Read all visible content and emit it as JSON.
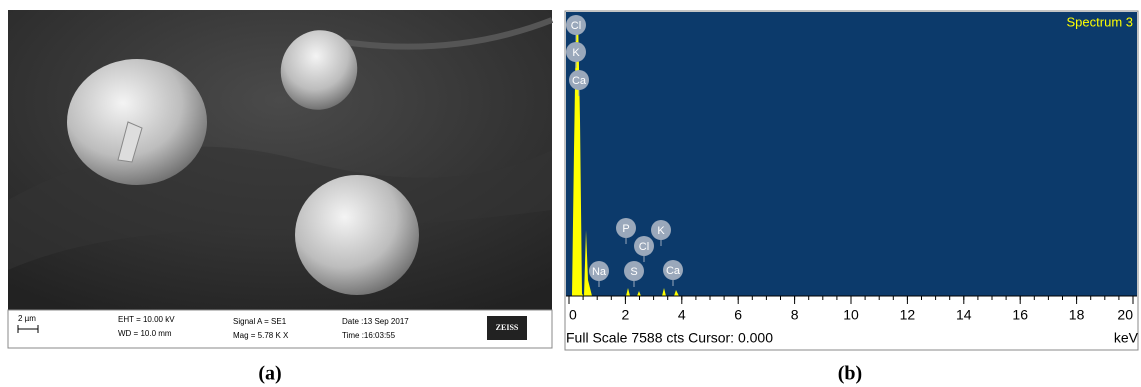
{
  "panel_a": {
    "label": "(a)",
    "scale_bar": "2 µm",
    "info": [
      [
        "EHT = 10.00 kV",
        "WD = 10.0 mm"
      ],
      [
        "Signal A = SE1",
        "Mag =  5.78 K X"
      ],
      [
        "Date :13 Sep 2017",
        "Time :16:03:55"
      ]
    ],
    "logo": "ZEISS"
  },
  "panel_b": {
    "label": "(b)",
    "title": "Spectrum 3",
    "xlim": [
      0,
      20
    ],
    "xticks": [
      0,
      2,
      4,
      6,
      8,
      10,
      12,
      14,
      16,
      18,
      20
    ],
    "x_unit": "keV",
    "status": "Full Scale 7588 cts Cursor: 0.000",
    "peak_labels": [
      "Cl",
      "K",
      "Ca",
      "P",
      "Cl",
      "K",
      "Na",
      "S",
      "Ca"
    ]
  }
}
